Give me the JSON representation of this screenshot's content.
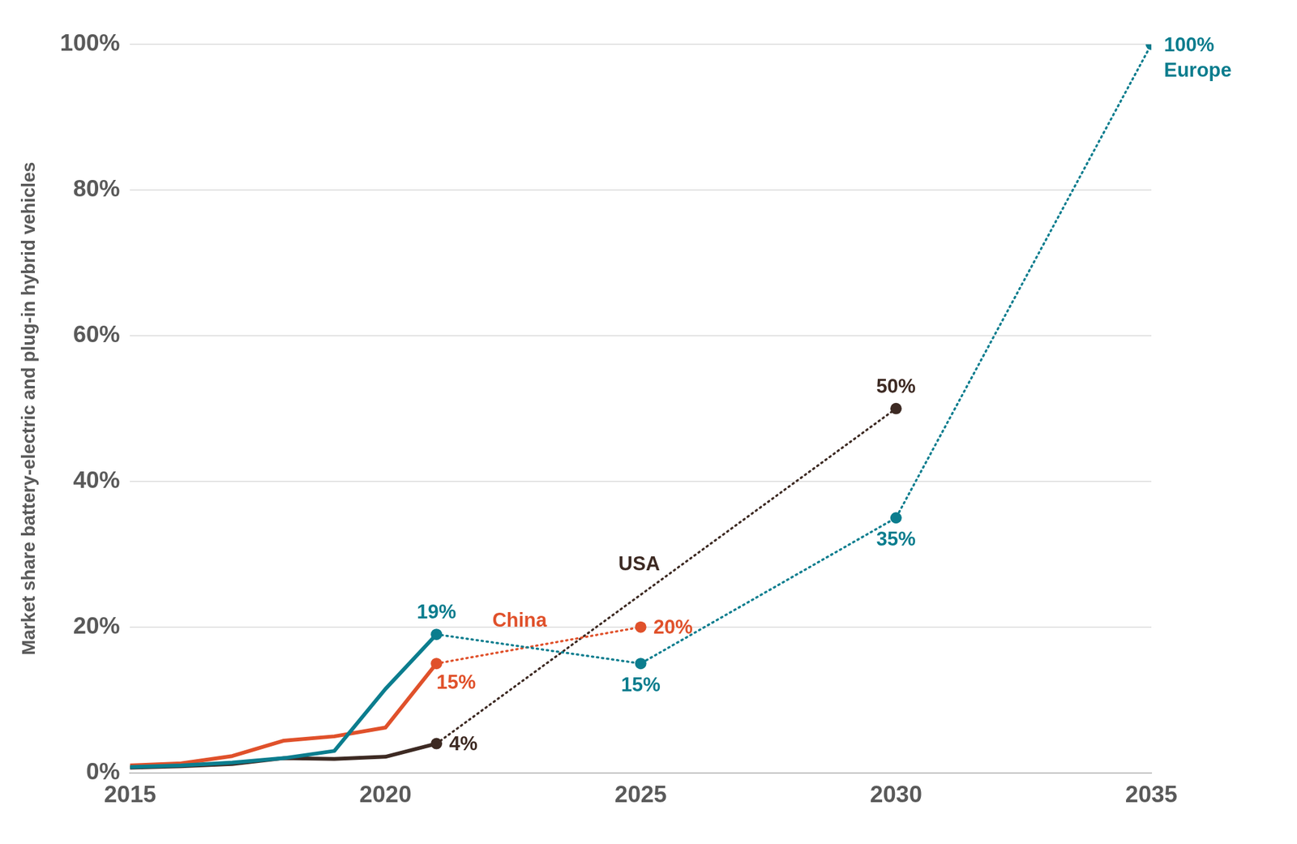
{
  "chart_data": {
    "type": "line",
    "ylabel": "Market share battery-electric and plug-in hybrid vehicles",
    "xlim": [
      2015,
      2035
    ],
    "xticks": [
      2015,
      2020,
      2025,
      2030,
      2035
    ],
    "ylim": [
      0,
      100
    ],
    "yticks": [
      {
        "value": 0,
        "label": "0%"
      },
      {
        "value": 20,
        "label": "20%"
      },
      {
        "value": 40,
        "label": "40%"
      },
      {
        "value": 60,
        "label": "60%"
      },
      {
        "value": 80,
        "label": "80%"
      },
      {
        "value": 100,
        "label": "100%"
      }
    ],
    "grid": true,
    "series": [
      {
        "name": "Europe",
        "color": "#0b7d8e",
        "line_style": "solid",
        "marker": "none",
        "x": [
          2015,
          2016,
          2017,
          2018,
          2019,
          2020,
          2021
        ],
        "values": [
          0.8,
          1.0,
          1.4,
          2.0,
          3.0,
          11.5,
          19
        ]
      },
      {
        "name": "Europe",
        "color": "#0b7d8e",
        "line_style": "dotted",
        "marker": "circle",
        "x": [
          2021,
          2025,
          2030,
          2035
        ],
        "values": [
          19,
          15,
          35,
          100
        ],
        "value_labels": [
          "19%",
          "15%",
          "35%",
          "100%"
        ]
      },
      {
        "name": "China",
        "color": "#e0512b",
        "line_style": "solid",
        "marker": "none",
        "x": [
          2015,
          2016,
          2017,
          2018,
          2019,
          2020,
          2021
        ],
        "values": [
          1.0,
          1.3,
          2.3,
          4.4,
          5.0,
          6.2,
          15
        ]
      },
      {
        "name": "China",
        "color": "#e0512b",
        "line_style": "dotted",
        "marker": "circle",
        "x": [
          2021,
          2025
        ],
        "values": [
          15,
          20
        ],
        "value_labels": [
          "15%",
          "20%"
        ]
      },
      {
        "name": "USA",
        "color": "#3d2a23",
        "line_style": "solid",
        "marker": "none",
        "x": [
          2015,
          2016,
          2017,
          2018,
          2019,
          2020,
          2021
        ],
        "values": [
          0.7,
          0.9,
          1.2,
          2.0,
          1.9,
          2.2,
          4
        ]
      },
      {
        "name": "USA",
        "color": "#3d2a23",
        "line_style": "dotted",
        "marker": "circle",
        "x": [
          2021,
          2030
        ],
        "values": [
          4,
          50
        ],
        "value_labels": [
          "4%",
          "50%"
        ]
      }
    ]
  }
}
